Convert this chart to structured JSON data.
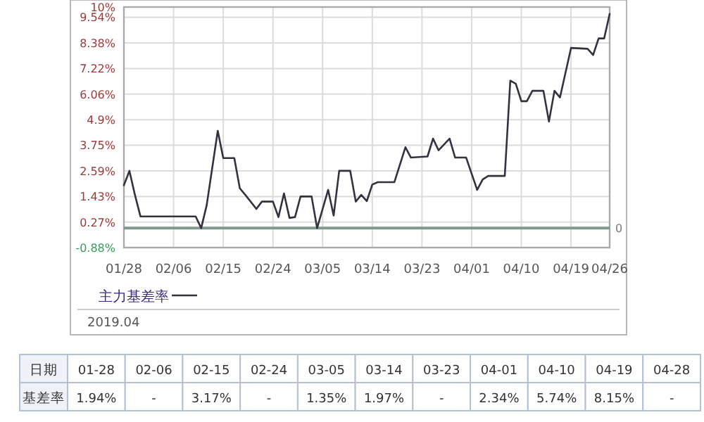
{
  "chart_data": [
    {
      "type": "line",
      "x": [
        "2019-01-28",
        "2019-01-29",
        "2019-01-30",
        "2019-01-31",
        "2019-02-10",
        "2019-02-11",
        "2019-02-12",
        "2019-02-14",
        "2019-02-15",
        "2019-02-17",
        "2019-02-18",
        "2019-02-19",
        "2019-02-21",
        "2019-02-22",
        "2019-02-24",
        "2019-02-25",
        "2019-02-26",
        "2019-02-27",
        "2019-02-28",
        "2019-03-01",
        "2019-03-03",
        "2019-03-04",
        "2019-03-06",
        "2019-03-07",
        "2019-03-08",
        "2019-03-10",
        "2019-03-11",
        "2019-03-12",
        "2019-03-13",
        "2019-03-14",
        "2019-03-15",
        "2019-03-18",
        "2019-03-20",
        "2019-03-21",
        "2019-03-24",
        "2019-03-25",
        "2019-03-26",
        "2019-03-28",
        "2019-03-29",
        "2019-03-31",
        "2019-04-02",
        "2019-04-03",
        "2019-04-04",
        "2019-04-07",
        "2019-04-08",
        "2019-04-09",
        "2019-04-10",
        "2019-04-11",
        "2019-04-12",
        "2019-04-14",
        "2019-04-15",
        "2019-04-16",
        "2019-04-17",
        "2019-04-19",
        "2019-04-22",
        "2019-04-23",
        "2019-04-24",
        "2019-04-25",
        "2019-04-26"
      ],
      "series": [
        {
          "name": "主力基差率",
          "color": "#333340",
          "values": [
            1.94,
            2.59,
            1.5,
            0.53,
            0.53,
            0.0,
            1.04,
            4.4,
            3.17,
            3.17,
            1.8,
            1.5,
            0.87,
            1.2,
            1.2,
            0.5,
            1.57,
            0.46,
            0.5,
            1.43,
            1.43,
            0.0,
            1.73,
            0.57,
            2.59,
            2.59,
            1.2,
            1.5,
            1.22,
            1.97,
            2.08,
            2.08,
            3.66,
            3.19,
            3.24,
            4.05,
            3.52,
            4.05,
            3.19,
            3.19,
            1.73,
            2.2,
            2.36,
            2.36,
            6.67,
            6.53,
            5.74,
            5.74,
            6.21,
            6.21,
            4.82,
            6.21,
            5.91,
            8.15,
            8.11,
            7.83,
            8.58,
            8.58,
            9.69
          ]
        }
      ],
      "xlim": [
        "2019-01-28",
        "2019-04-26"
      ],
      "xticks": [
        {
          "value": "2019-01-28",
          "label": "01/28"
        },
        {
          "value": "2019-02-06",
          "label": "02/06"
        },
        {
          "value": "2019-02-15",
          "label": "02/15"
        },
        {
          "value": "2019-02-24",
          "label": "02/24"
        },
        {
          "value": "2019-03-05",
          "label": "03/05"
        },
        {
          "value": "2019-03-14",
          "label": "03/14"
        },
        {
          "value": "2019-03-23",
          "label": "03/23"
        },
        {
          "value": "2019-04-01",
          "label": "04/01"
        },
        {
          "value": "2019-04-10",
          "label": "04/10"
        },
        {
          "value": "2019-04-19",
          "label": "04/19"
        },
        {
          "value": "2019-04-26",
          "label": "04/26"
        }
      ],
      "ylim": [
        -0.88,
        10
      ],
      "yticks": [
        {
          "value": -0.88,
          "label": "-0.88%"
        },
        {
          "value": 0.27,
          "label": "0.27%"
        },
        {
          "value": 1.43,
          "label": "1.43%"
        },
        {
          "value": 2.59,
          "label": "2.59%"
        },
        {
          "value": 3.75,
          "label": "3.75%"
        },
        {
          "value": 4.9,
          "label": "4.9%"
        },
        {
          "value": 6.06,
          "label": "6.06%"
        },
        {
          "value": 7.22,
          "label": "7.22%"
        },
        {
          "value": 8.38,
          "label": "8.38%"
        },
        {
          "value": 9.54,
          "label": "9.54%"
        },
        {
          "value": 10,
          "label": "10%"
        }
      ],
      "ref_lines": [
        {
          "axis": "y",
          "value": 0,
          "label": "0",
          "color": "#7f9a8c"
        }
      ],
      "grid": true,
      "legend": "bottom left",
      "marker": "none",
      "line_style": "solid",
      "annotations": [
        "2019.04"
      ]
    },
    {
      "type": "other",
      "annotations": [
        "日期",
        "01-28",
        "02-06",
        "02-15",
        "02-24",
        "03-05",
        "03-14",
        "03-23",
        "04-01",
        "04-10",
        "04-19",
        "04-28",
        "基差率",
        "1.94%",
        "-",
        "3.17%",
        "-",
        "1.35%",
        "1.97%",
        "-",
        "2.34%",
        "5.74%",
        "8.15%",
        "-"
      ]
    }
  ]
}
